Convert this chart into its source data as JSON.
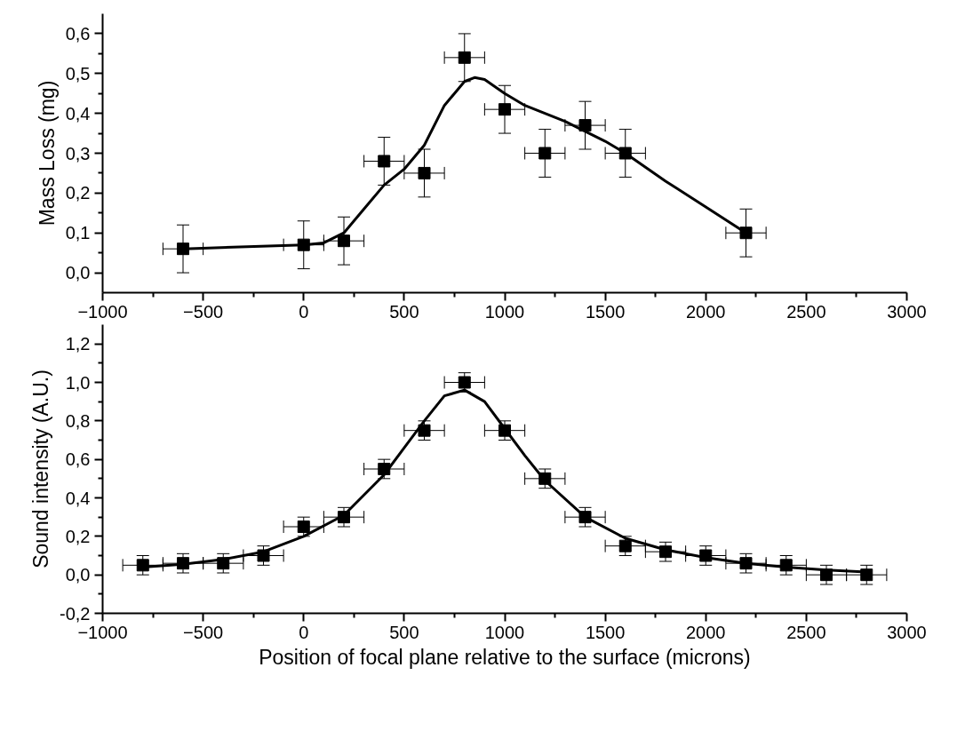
{
  "chart_data": [
    {
      "type": "scatter",
      "ylabel": "Mass Loss (mg)",
      "xlim": [
        -1000,
        3000
      ],
      "ylim": [
        -0.05,
        0.65
      ],
      "xticks": [
        -1000,
        {
          "value": -750,
          "label": null
        },
        -500,
        {
          "value": -250,
          "label": null
        },
        0,
        {
          "value": 250,
          "label": null
        },
        500,
        {
          "value": 750,
          "label": null
        },
        1000,
        {
          "value": 1250,
          "label": null
        },
        1500,
        {
          "value": 1750,
          "label": null
        },
        2000,
        {
          "value": 2250,
          "label": null
        },
        2500,
        {
          "value": 2750,
          "label": null
        },
        3000
      ],
      "yticks": [
        {
          "value": 0,
          "label": "0,0"
        },
        {
          "value": 0.05,
          "label": null
        },
        {
          "value": 0.1,
          "label": "0,1"
        },
        {
          "value": 0.15,
          "label": null
        },
        {
          "value": 0.2,
          "label": "0,2"
        },
        {
          "value": 0.25,
          "label": null
        },
        {
          "value": 0.3,
          "label": "0,3"
        },
        {
          "value": 0.35,
          "label": null
        },
        {
          "value": 0.4,
          "label": "0,4"
        },
        {
          "value": 0.45,
          "label": null
        },
        {
          "value": 0.5,
          "label": "0,5"
        },
        {
          "value": 0.55,
          "label": null
        },
        {
          "value": 0.6,
          "label": "0,6"
        }
      ],
      "series": [
        {
          "marker": "square",
          "color": "#000000",
          "x": [
            -600,
            0,
            200,
            400,
            600,
            800,
            1000,
            1200,
            1400,
            1600,
            2200
          ],
          "values": [
            0.06,
            0.07,
            0.08,
            0.28,
            0.25,
            0.54,
            0.41,
            0.3,
            0.37,
            0.3,
            0.1
          ],
          "errors": [
            0.06,
            0.06,
            0.06,
            0.06,
            0.06,
            0.06,
            0.06,
            0.06,
            0.06,
            0.06,
            0.06
          ],
          "xerrors": [
            100,
            100,
            100,
            100,
            100,
            100,
            100,
            100,
            100,
            100,
            100
          ]
        },
        {
          "type": "line",
          "color": "#000000",
          "x": [
            -600,
            0,
            100,
            200,
            300,
            400,
            500,
            600,
            700,
            800,
            850,
            900,
            1000,
            1100,
            1200,
            1300,
            1400,
            1500,
            1600,
            1800,
            2000,
            2200
          ],
          "values": [
            0.06,
            0.07,
            0.075,
            0.1,
            0.16,
            0.22,
            0.26,
            0.32,
            0.42,
            0.48,
            0.49,
            0.485,
            0.45,
            0.42,
            0.4,
            0.38,
            0.355,
            0.33,
            0.3,
            0.23,
            0.165,
            0.1
          ]
        }
      ]
    },
    {
      "type": "scatter",
      "xlabel": "Position of focal plane relative to the surface (microns)",
      "ylabel": "Sound intensity (A.U.)",
      "xlim": [
        -1000,
        3000
      ],
      "ylim": [
        -0.2,
        1.3
      ],
      "xticks": [
        -1000,
        {
          "value": -750,
          "label": null
        },
        -500,
        {
          "value": -250,
          "label": null
        },
        0,
        {
          "value": 250,
          "label": null
        },
        500,
        {
          "value": 750,
          "label": null
        },
        1000,
        {
          "value": 1250,
          "label": null
        },
        1500,
        {
          "value": 1750,
          "label": null
        },
        2000,
        {
          "value": 2250,
          "label": null
        },
        2500,
        {
          "value": 2750,
          "label": null
        },
        3000
      ],
      "yticks": [
        {
          "value": -0.2,
          "label": "-0,2"
        },
        {
          "value": -0.1,
          "label": null
        },
        {
          "value": 0,
          "label": "0,0"
        },
        {
          "value": 0.1,
          "label": null
        },
        {
          "value": 0.2,
          "label": "0,2"
        },
        {
          "value": 0.3,
          "label": null
        },
        {
          "value": 0.4,
          "label": "0,4"
        },
        {
          "value": 0.5,
          "label": null
        },
        {
          "value": 0.6,
          "label": "0,6"
        },
        {
          "value": 0.7,
          "label": null
        },
        {
          "value": 0.8,
          "label": "0,8"
        },
        {
          "value": 0.9,
          "label": null
        },
        {
          "value": 1.0,
          "label": "1,0"
        },
        {
          "value": 1.1,
          "label": null
        },
        {
          "value": 1.2,
          "label": "1,2"
        }
      ],
      "series": [
        {
          "marker": "square",
          "color": "#000000",
          "x": [
            -800,
            -600,
            -400,
            -200,
            0,
            200,
            400,
            600,
            800,
            1000,
            1200,
            1400,
            1600,
            1800,
            2000,
            2200,
            2400,
            2600,
            2800
          ],
          "values": [
            0.05,
            0.06,
            0.06,
            0.1,
            0.25,
            0.3,
            0.55,
            0.75,
            1.0,
            0.75,
            0.5,
            0.3,
            0.15,
            0.12,
            0.1,
            0.06,
            0.05,
            0.0,
            0.0
          ],
          "errors": [
            0.05,
            0.05,
            0.05,
            0.05,
            0.05,
            0.05,
            0.05,
            0.05,
            0.05,
            0.05,
            0.05,
            0.05,
            0.05,
            0.05,
            0.05,
            0.05,
            0.05,
            0.05,
            0.05
          ],
          "xerrors": [
            100,
            100,
            100,
            100,
            100,
            100,
            100,
            100,
            100,
            100,
            100,
            100,
            100,
            100,
            100,
            100,
            100,
            100,
            100
          ]
        },
        {
          "type": "line",
          "color": "#000000",
          "x": [
            -800,
            -600,
            -400,
            -200,
            0,
            200,
            400,
            500,
            600,
            700,
            800,
            900,
            1000,
            1100,
            1200,
            1400,
            1600,
            1800,
            2000,
            2200,
            2400,
            2600,
            2800
          ],
          "values": [
            0.04,
            0.055,
            0.08,
            0.12,
            0.2,
            0.31,
            0.52,
            0.66,
            0.8,
            0.93,
            0.96,
            0.9,
            0.76,
            0.62,
            0.49,
            0.3,
            0.19,
            0.13,
            0.09,
            0.06,
            0.04,
            0.025,
            0.015
          ]
        }
      ]
    }
  ]
}
